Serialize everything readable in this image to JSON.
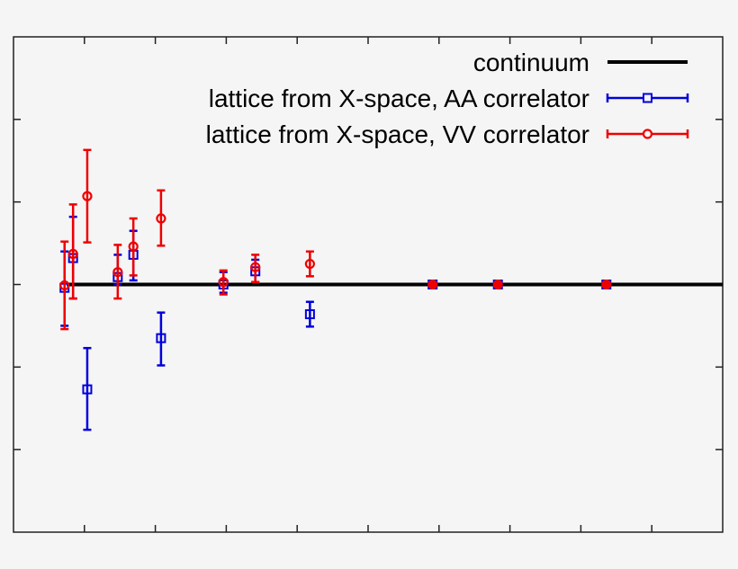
{
  "chart_data": {
    "type": "scatter",
    "title": "",
    "xlabel": "",
    "ylabel": "",
    "xlim": [
      0,
      10
    ],
    "ylim": [
      -3,
      3
    ],
    "x_ticks": [
      1,
      2,
      3,
      4,
      5,
      6,
      7,
      8,
      9
    ],
    "y_ticks": [
      -2,
      -1,
      0,
      1,
      2
    ],
    "tick_labels_visible": false,
    "grid": false,
    "legend_position": "top-right",
    "series": [
      {
        "name": "continuum",
        "kind": "line",
        "color": "#000000",
        "x": [
          0.75,
          10
        ],
        "y": [
          0,
          0
        ]
      },
      {
        "name": "lattice from X-space, AA correlator",
        "kind": "errorbar",
        "marker": "square",
        "color": "#0000dd",
        "points": [
          {
            "x": 0.72,
            "y": -0.04,
            "ylo": -0.5,
            "yhi": 0.4
          },
          {
            "x": 0.84,
            "y": 0.32,
            "ylo": -0.17,
            "yhi": 0.82
          },
          {
            "x": 1.04,
            "y": -1.27,
            "ylo": -1.76,
            "yhi": -0.77
          },
          {
            "x": 1.47,
            "y": 0.09,
            "ylo": 0.0,
            "yhi": 0.36
          },
          {
            "x": 1.69,
            "y": 0.36,
            "ylo": 0.05,
            "yhi": 0.65
          },
          {
            "x": 2.08,
            "y": -0.65,
            "ylo": -0.98,
            "yhi": -0.34
          },
          {
            "x": 2.96,
            "y": 0.0,
            "ylo": -0.1,
            "yhi": 0.15
          },
          {
            "x": 3.41,
            "y": 0.16,
            "ylo": 0.03,
            "yhi": 0.3
          },
          {
            "x": 4.18,
            "y": -0.36,
            "ylo": -0.51,
            "yhi": -0.21
          },
          {
            "x": 5.91,
            "y": 0.0,
            "ylo": 0.0,
            "yhi": 0.0
          },
          {
            "x": 6.83,
            "y": 0.0,
            "ylo": 0.0,
            "yhi": 0.0
          },
          {
            "x": 8.36,
            "y": 0.0,
            "ylo": 0.0,
            "yhi": 0.0
          }
        ]
      },
      {
        "name": "lattice from X-space, VV correlator",
        "kind": "errorbar",
        "marker": "circle",
        "color": "#ee0000",
        "points": [
          {
            "x": 0.72,
            "y": -0.01,
            "ylo": -0.54,
            "yhi": 0.52
          },
          {
            "x": 0.84,
            "y": 0.37,
            "ylo": -0.17,
            "yhi": 0.97
          },
          {
            "x": 1.04,
            "y": 1.07,
            "ylo": 0.51,
            "yhi": 1.63
          },
          {
            "x": 1.47,
            "y": 0.15,
            "ylo": -0.17,
            "yhi": 0.48
          },
          {
            "x": 1.69,
            "y": 0.46,
            "ylo": 0.11,
            "yhi": 0.8
          },
          {
            "x": 2.08,
            "y": 0.8,
            "ylo": 0.47,
            "yhi": 1.14
          },
          {
            "x": 2.96,
            "y": 0.03,
            "ylo": -0.12,
            "yhi": 0.17
          },
          {
            "x": 3.41,
            "y": 0.21,
            "ylo": 0.03,
            "yhi": 0.36
          },
          {
            "x": 4.18,
            "y": 0.25,
            "ylo": 0.1,
            "yhi": 0.4
          },
          {
            "x": 5.91,
            "y": 0.0,
            "ylo": 0.0,
            "yhi": 0.0
          },
          {
            "x": 6.83,
            "y": 0.0,
            "ylo": 0.0,
            "yhi": 0.0
          },
          {
            "x": 8.36,
            "y": 0.0,
            "ylo": 0.0,
            "yhi": 0.0
          }
        ]
      }
    ]
  },
  "legend": {
    "items": [
      {
        "label": "continuum",
        "color": "#000000",
        "marker": "none"
      },
      {
        "label": "lattice from X-space, AA correlator",
        "color": "#0000dd",
        "marker": "square"
      },
      {
        "label": "lattice from X-space, VV correlator",
        "color": "#ee0000",
        "marker": "circle"
      }
    ]
  },
  "colors": {
    "background": "#f5f5f5",
    "frame": "#222222"
  }
}
